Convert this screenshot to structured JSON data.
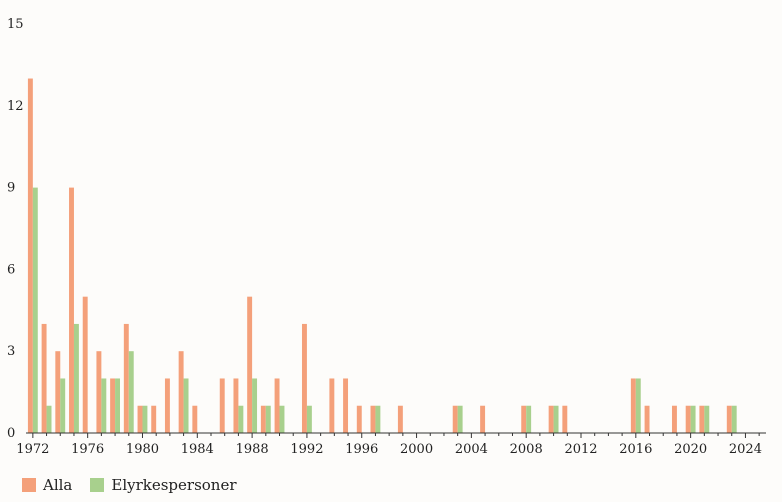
{
  "chart_data": {
    "type": "bar",
    "x": [
      1972,
      1973,
      1974,
      1975,
      1976,
      1977,
      1978,
      1979,
      1980,
      1981,
      1982,
      1983,
      1984,
      1985,
      1986,
      1987,
      1988,
      1989,
      1990,
      1991,
      1992,
      1993,
      1994,
      1995,
      1996,
      1997,
      1998,
      1999,
      2000,
      2001,
      2002,
      2003,
      2004,
      2005,
      2006,
      2007,
      2008,
      2009,
      2010,
      2011,
      2012,
      2013,
      2014,
      2015,
      2016,
      2017,
      2018,
      2019,
      2020,
      2021,
      2022,
      2023,
      2024
    ],
    "series": [
      {
        "name": "Alla",
        "color": "#f4a07a",
        "values": [
          13,
          4,
          3,
          9,
          5,
          3,
          2,
          4,
          1,
          1,
          2,
          3,
          1,
          0,
          2,
          2,
          5,
          1,
          2,
          0,
          4,
          0,
          2,
          2,
          1,
          1,
          0,
          1,
          0,
          0,
          0,
          1,
          0,
          1,
          0,
          0,
          1,
          0,
          1,
          1,
          0,
          0,
          0,
          0,
          2,
          1,
          0,
          1,
          1,
          1,
          0,
          1,
          0
        ]
      },
      {
        "name": "Elyrkespersoner",
        "color": "#a8d08d",
        "values": [
          9,
          1,
          2,
          4,
          0,
          2,
          2,
          3,
          1,
          0,
          0,
          2,
          0,
          0,
          0,
          1,
          2,
          1,
          1,
          0,
          1,
          0,
          0,
          0,
          0,
          1,
          0,
          0,
          0,
          0,
          0,
          1,
          0,
          0,
          0,
          0,
          1,
          0,
          1,
          0,
          0,
          0,
          0,
          0,
          2,
          0,
          0,
          0,
          1,
          1,
          0,
          1,
          0
        ]
      }
    ],
    "xticks": [
      1972,
      1976,
      1980,
      1984,
      1988,
      1992,
      1996,
      2000,
      2004,
      2008,
      2012,
      2016,
      2020,
      2024
    ],
    "yticks": [
      0,
      3,
      6,
      9,
      12,
      15
    ],
    "ylim": [
      0,
      15
    ],
    "xlim": [
      1971.5,
      2025.5
    ],
    "legend_position": "bottom-left"
  },
  "legend": {
    "items": [
      {
        "label": "Alla",
        "color": "#f4a07a"
      },
      {
        "label": "Elyrkespersoner",
        "color": "#a8d08d"
      }
    ]
  }
}
